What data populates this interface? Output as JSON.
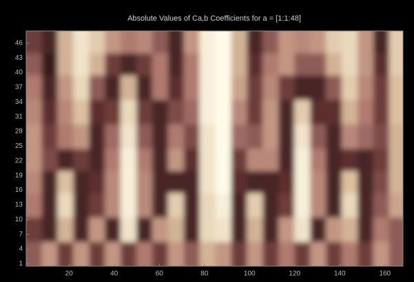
{
  "chart_data": {
    "type": "heatmap",
    "title": "Absolute Values of Ca,b Coefficients for a = [1:1:48]",
    "x": [
      4.5,
      11.5,
      18.5,
      25.5,
      32.5,
      39.5,
      46.5,
      53.5,
      60.5,
      67.5,
      74.5,
      81.5,
      88.5,
      95.5,
      102.5,
      109.5,
      116.5,
      123.5,
      130.5,
      137.5,
      144.5,
      151.5,
      158.5,
      165.5
    ],
    "y": [
      3,
      8,
      13,
      18,
      22,
      27,
      32,
      37,
      42,
      46
    ],
    "z": [
      [
        0.4,
        0.6,
        0.3,
        0.6,
        0.3,
        0.6,
        0.3,
        0.5,
        0.3,
        0.6,
        0.4,
        0.7,
        0.6,
        0.3,
        0.6,
        0.3,
        0.5,
        0.3,
        0.6,
        0.3,
        0.5,
        0.3,
        0.6,
        0.4
      ],
      [
        0.3,
        0.2,
        0.7,
        0.2,
        0.6,
        0.2,
        0.9,
        0.2,
        0.6,
        0.7,
        0.2,
        0.85,
        0.9,
        0.2,
        0.7,
        0.2,
        0.6,
        0.9,
        0.2,
        0.6,
        0.7,
        0.2,
        0.5,
        0.4
      ],
      [
        0.5,
        0.2,
        0.85,
        0.2,
        0.3,
        0.55,
        0.95,
        0.55,
        0.2,
        0.8,
        0.2,
        0.85,
        0.95,
        0.2,
        0.8,
        0.2,
        0.3,
        0.95,
        0.55,
        0.2,
        0.85,
        0.2,
        0.4,
        0.65
      ],
      [
        0.55,
        0.2,
        0.75,
        0.2,
        0.25,
        0.55,
        0.95,
        0.55,
        0.2,
        0.2,
        0.2,
        0.9,
        1,
        0.25,
        0.2,
        0.2,
        0.25,
        0.95,
        0.55,
        0.2,
        0.75,
        0.2,
        0.35,
        0.7
      ],
      [
        0.6,
        0.35,
        0.2,
        0.3,
        0.2,
        0.5,
        0.95,
        0.5,
        0.2,
        0.6,
        0.25,
        0.9,
        1,
        0.3,
        0.55,
        0.55,
        0.2,
        0.95,
        0.5,
        0.2,
        0.25,
        0.2,
        0.3,
        0.7
      ],
      [
        0.6,
        0.3,
        0.5,
        0.6,
        0.2,
        0.45,
        0.9,
        0.4,
        0.2,
        0.5,
        0.35,
        0.9,
        1,
        0.45,
        0.4,
        0.6,
        0.2,
        0.9,
        0.4,
        0.2,
        0.55,
        0.45,
        0.35,
        0.7
      ],
      [
        0.55,
        0.25,
        0.55,
        0.75,
        0.25,
        0.3,
        0.85,
        0.3,
        0.2,
        0.35,
        0.45,
        0.95,
        1,
        0.55,
        0.3,
        0.6,
        0.2,
        0.8,
        0.25,
        0.25,
        0.7,
        0.5,
        0.3,
        0.75
      ],
      [
        0.5,
        0.2,
        0.6,
        0.85,
        0.4,
        0.2,
        0.7,
        0.2,
        0.5,
        0.25,
        0.5,
        0.95,
        1,
        0.65,
        0.3,
        0.55,
        0.3,
        0.2,
        0.2,
        0.4,
        0.8,
        0.55,
        0.3,
        0.75
      ],
      [
        0.4,
        0.15,
        0.7,
        0.9,
        0.7,
        0.3,
        0.2,
        0.3,
        0.5,
        0.2,
        0.5,
        0.95,
        1,
        0.7,
        0.25,
        0.5,
        0.6,
        0.4,
        0.4,
        0.7,
        0.85,
        0.6,
        0.25,
        0.8
      ],
      [
        0.3,
        0.2,
        0.7,
        0.9,
        0.8,
        0.6,
        0.5,
        0.55,
        0.4,
        0.2,
        0.6,
        0.95,
        1,
        0.7,
        0.2,
        0.4,
        0.6,
        0.55,
        0.6,
        0.8,
        0.85,
        0.6,
        0.2,
        0.8
      ]
    ],
    "zlim": [
      0,
      1
    ],
    "colormap": [
      "#000000",
      "#5c2e2e",
      "#b07a70",
      "#dcc0a0",
      "#fffbe8"
    ],
    "xlim": [
      1,
      168
    ],
    "ylim": [
      0.5,
      48.5
    ],
    "xticks": [
      20,
      40,
      60,
      80,
      100,
      120,
      140,
      160
    ],
    "yticks": [
      1,
      4,
      7,
      10,
      13,
      16,
      19,
      22,
      25,
      28,
      31,
      34,
      37,
      40,
      43,
      46
    ]
  }
}
